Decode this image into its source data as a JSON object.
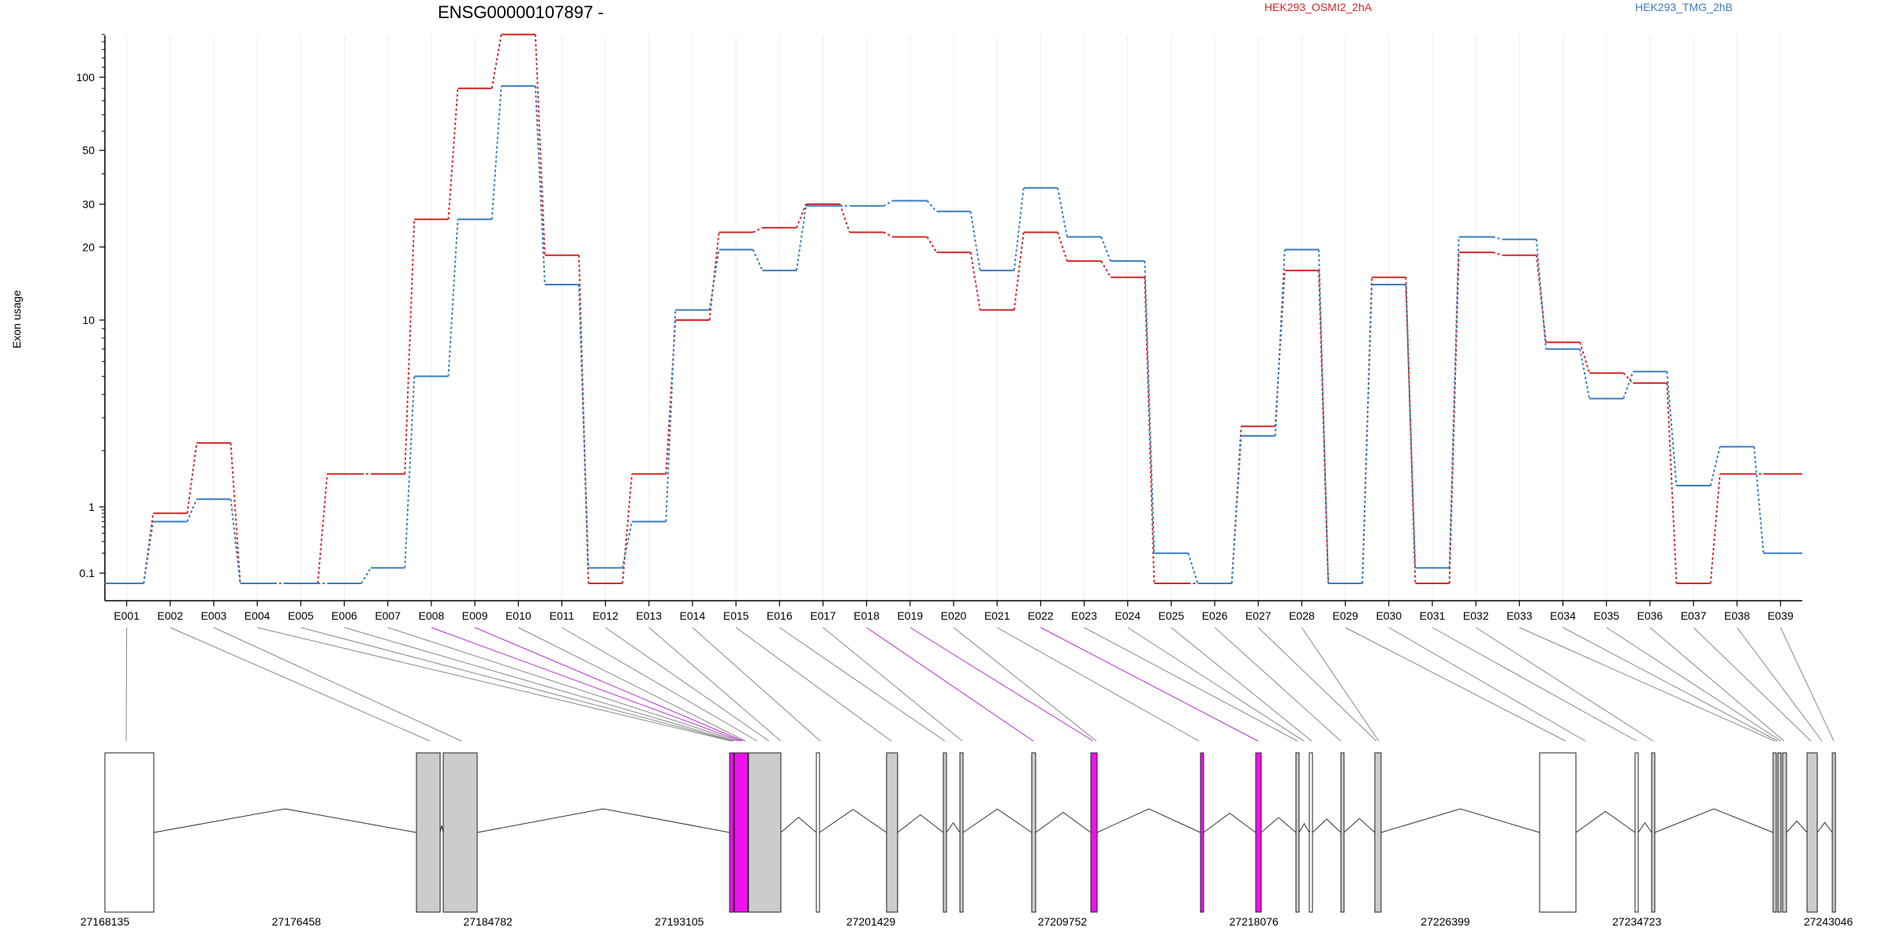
{
  "chart_data": {
    "type": "line",
    "title": "ENSG00000107897 -",
    "ylabel": "Exon usage",
    "xlabel": "",
    "y_scale": "log",
    "y_ticks": [
      0.1,
      1,
      10,
      20,
      30,
      50,
      100
    ],
    "y_tick_labels": [
      "0.1",
      "1",
      "10",
      "20",
      "30",
      "50",
      "100"
    ],
    "categories": [
      "E001",
      "E002",
      "E003",
      "E004",
      "E005",
      "E006",
      "E007",
      "E008",
      "E009",
      "E010",
      "E011",
      "E012",
      "E013",
      "E014",
      "E015",
      "E016",
      "E017",
      "E018",
      "E019",
      "E020",
      "E021",
      "E022",
      "E023",
      "E024",
      "E025",
      "E026",
      "E027",
      "E028",
      "E029",
      "E030",
      "E031",
      "E032",
      "E033",
      "E034",
      "E035",
      "E036",
      "E037",
      "E038",
      "E039"
    ],
    "series": [
      {
        "name": "HEK293_OSMI2_2hA",
        "color": "#d62728",
        "values": [
          0.07,
          0.8,
          2.2,
          0.07,
          0.07,
          1.5,
          1.5,
          26,
          90,
          150,
          18.5,
          0.07,
          1.5,
          10,
          23,
          24,
          30,
          23,
          22,
          19,
          11,
          23,
          17.5,
          15,
          0.07,
          0.07,
          2.7,
          16,
          0.07,
          15,
          0.07,
          19,
          18.5,
          7.6,
          5.2,
          4.6,
          0.07,
          1.5,
          1.5
        ]
      },
      {
        "name": "HEK293_TMG_2hB",
        "color": "#3a7dc1",
        "values": [
          0.07,
          0.6,
          1.1,
          0.07,
          0.07,
          0.07,
          0.12,
          5,
          26,
          92,
          14,
          0.12,
          0.6,
          11,
          19.5,
          16,
          29.5,
          29.5,
          31,
          28,
          16,
          35,
          22,
          17.5,
          0.2,
          0.07,
          2.4,
          19.5,
          0.07,
          14,
          0.12,
          22,
          21.5,
          7,
          3.8,
          5.3,
          1.3,
          2.1,
          0.2
        ]
      }
    ],
    "gene_coordinates": [
      "27168135",
      "27176458",
      "27184782",
      "27193105",
      "27201429",
      "27209752",
      "27218076",
      "27226399",
      "27234723",
      "27243046"
    ],
    "highlight_color": "#ee11ee",
    "highlighted_exons": [
      "E008",
      "E009",
      "E018",
      "E019",
      "E022"
    ]
  }
}
